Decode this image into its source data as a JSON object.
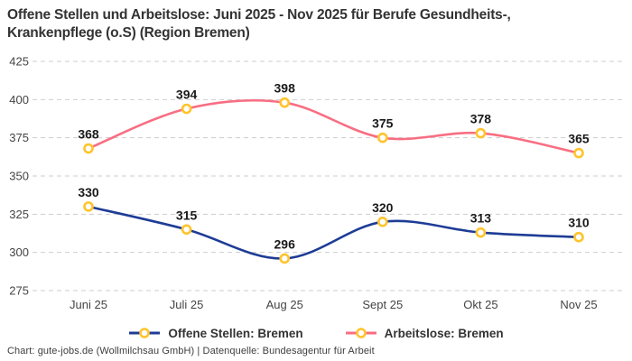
{
  "title": "Offene Stellen und Arbeitslose: Juni 2025 - Nov 2025 für Berufe Gesundheits-, Krankenpflege (o.S) (Region Bremen)",
  "footer": "Chart: gute-jobs.de (Wollmilchsau GmbH) | Datenquelle: Bundesagentur für Arbeit",
  "colors": {
    "title_text": "#333333",
    "axis_text": "#444444",
    "data_label_text": "#1a1a1a",
    "gridline": "#cdcdcd",
    "series_offene_stellen": "#1E3C96",
    "series_arbeitslose": "#F86E82",
    "marker_stroke": "#FFC42D",
    "marker_fill": "#ffffff",
    "background": "#ffffff"
  },
  "chart_data": {
    "type": "line",
    "line_style": "spline",
    "title": "Offene Stellen und Arbeitslose: Juni 2025 - Nov 2025 für Berufe Gesundheits-, Krankenpflege (o.S) (Region Bremen)",
    "xlabel": "",
    "ylabel": "",
    "categories": [
      "Juni 25",
      "Juli 25",
      "Aug 25",
      "Sept 25",
      "Okt 25",
      "Nov 25"
    ],
    "series": [
      {
        "name": "Offene Stellen: Bremen",
        "color": "#1E3C96",
        "values": [
          330,
          315,
          296,
          320,
          313,
          310
        ]
      },
      {
        "name": "Arbeitslose: Bremen",
        "color": "#F86E82",
        "values": [
          368,
          394,
          398,
          375,
          378,
          365
        ]
      }
    ],
    "data_labels_visible": true,
    "marker": {
      "shape": "circle",
      "fill": "#ffffff",
      "stroke": "#FFC42D"
    },
    "ylim": [
      275,
      425
    ],
    "yticks": [
      275,
      300,
      325,
      350,
      375,
      400,
      425
    ],
    "grid": true,
    "grid_style": "dashed",
    "legend_position": "bottom",
    "source": "Chart: gute-jobs.de (Wollmilchsau GmbH) | Datenquelle: Bundesagentur für Arbeit"
  }
}
